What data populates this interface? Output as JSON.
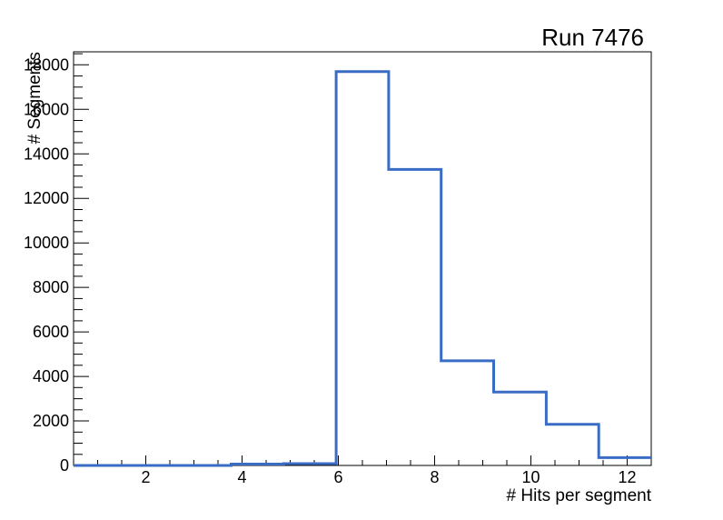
{
  "title": "Run 7476",
  "axes": {
    "x_title": "# Hits per segment",
    "y_title": "# Segments"
  },
  "chart_data": {
    "type": "bar",
    "subtype": "step-outline-histogram",
    "title": "Run 7476",
    "xlabel": "# Hits per segment",
    "ylabel": "# Segments",
    "xlim": [
      0.5,
      12.5
    ],
    "ylim": [
      0,
      18585
    ],
    "n_bins": 11,
    "bin_edges": [
      0.5,
      1.591,
      2.682,
      3.773,
      4.864,
      5.955,
      7.045,
      8.136,
      9.227,
      10.318,
      11.409,
      12.5
    ],
    "values": [
      0,
      0,
      0,
      60,
      80,
      17700,
      13300,
      4700,
      3300,
      1850,
      350
    ],
    "x_ticks": {
      "major": [
        {
          "value": 2,
          "label": "2"
        },
        {
          "value": 4,
          "label": "4"
        },
        {
          "value": 6,
          "label": "6"
        },
        {
          "value": 8,
          "label": "8"
        },
        {
          "value": 10,
          "label": "10"
        },
        {
          "value": 12,
          "label": "12"
        }
      ],
      "minor_step": 0.5
    },
    "y_ticks": {
      "major": [
        {
          "value": 0,
          "label": "0"
        },
        {
          "value": 2000,
          "label": "2000"
        },
        {
          "value": 4000,
          "label": "4000"
        },
        {
          "value": 6000,
          "label": "6000"
        },
        {
          "value": 8000,
          "label": "8000"
        },
        {
          "value": 10000,
          "label": "10000"
        },
        {
          "value": 12000,
          "label": "12000"
        },
        {
          "value": 14000,
          "label": "14000"
        },
        {
          "value": 16000,
          "label": "16000"
        },
        {
          "value": 18000,
          "label": "18000"
        }
      ],
      "minor_step": 500,
      "minor_max": 18500
    },
    "line_color": "#3a6cc5",
    "frame_color": "#000000",
    "background_color": "#ffffff",
    "grid": false,
    "legend": null
  }
}
